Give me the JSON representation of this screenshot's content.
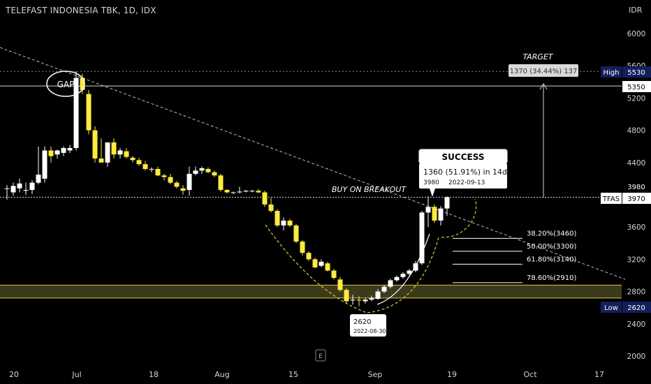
{
  "header": {
    "title": "TELEFAST INDONESIA TBK, 1D, IDX",
    "currency": "IDR"
  },
  "colors": {
    "background": "#000000",
    "up_candle": "#ffffff",
    "down_candle": "#ffeb3b",
    "axis_text": "#d1d4dc",
    "badge": "#131f5c"
  },
  "chart_data": {
    "type": "candlestick",
    "y_axis": {
      "ticks": [
        "6000",
        "5600",
        "5200",
        "4800",
        "4400",
        "3600",
        "3200",
        "2800",
        "2400",
        "2000"
      ],
      "ylim": [
        1900,
        6300
      ]
    },
    "x_axis": {
      "ticks": [
        "20",
        "Jul",
        "18",
        "Aug",
        "15",
        "Sep",
        "19",
        "Oct",
        "17"
      ]
    },
    "price_labels": {
      "high_label": "High",
      "high_value": "5530",
      "line_value": "5350",
      "breakout_value": "3980",
      "symbol_label": "TFAS",
      "symbol_value": "3970",
      "low_label": "Low",
      "low_value": "2620"
    },
    "candles": [
      {
        "o": 4080,
        "h": 4120,
        "l": 3940,
        "c": 4080
      },
      {
        "o": 4030,
        "h": 4150,
        "l": 3990,
        "c": 4110
      },
      {
        "o": 4080,
        "h": 4200,
        "l": 4030,
        "c": 4140
      },
      {
        "o": 4050,
        "h": 4150,
        "l": 4000,
        "c": 4060
      },
      {
        "o": 4060,
        "h": 4180,
        "l": 4010,
        "c": 4150
      },
      {
        "o": 4150,
        "h": 4600,
        "l": 4130,
        "c": 4250
      },
      {
        "o": 4200,
        "h": 4600,
        "l": 4150,
        "c": 4550
      },
      {
        "o": 4550,
        "h": 4600,
        "l": 4400,
        "c": 4480
      },
      {
        "o": 4500,
        "h": 4560,
        "l": 4450,
        "c": 4550
      },
      {
        "o": 4520,
        "h": 4600,
        "l": 4480,
        "c": 4580
      },
      {
        "o": 4550,
        "h": 4620,
        "l": 4520,
        "c": 4580
      },
      {
        "o": 4580,
        "h": 5530,
        "l": 4550,
        "c": 5450
      },
      {
        "o": 5450,
        "h": 5500,
        "l": 5250,
        "c": 5300
      },
      {
        "o": 5250,
        "h": 5300,
        "l": 4750,
        "c": 4800
      },
      {
        "o": 4800,
        "h": 4850,
        "l": 4400,
        "c": 4450
      },
      {
        "o": 4450,
        "h": 4700,
        "l": 4400,
        "c": 4400
      },
      {
        "o": 4400,
        "h": 4650,
        "l": 4350,
        "c": 4650
      },
      {
        "o": 4650,
        "h": 4700,
        "l": 4450,
        "c": 4500
      },
      {
        "o": 4500,
        "h": 4580,
        "l": 4450,
        "c": 4550
      },
      {
        "o": 4540,
        "h": 4580,
        "l": 4450,
        "c": 4470
      },
      {
        "o": 4460,
        "h": 4480,
        "l": 4400,
        "c": 4430
      },
      {
        "o": 4430,
        "h": 4460,
        "l": 4360,
        "c": 4380
      },
      {
        "o": 4380,
        "h": 4420,
        "l": 4300,
        "c": 4320
      },
      {
        "o": 4320,
        "h": 4340,
        "l": 4280,
        "c": 4320
      },
      {
        "o": 4320,
        "h": 4350,
        "l": 4230,
        "c": 4240
      },
      {
        "o": 4240,
        "h": 4260,
        "l": 4180,
        "c": 4220
      },
      {
        "o": 4220,
        "h": 4260,
        "l": 4130,
        "c": 4150
      },
      {
        "o": 4150,
        "h": 4170,
        "l": 4080,
        "c": 4100
      },
      {
        "o": 4080,
        "h": 4120,
        "l": 4000,
        "c": 4050
      },
      {
        "o": 4060,
        "h": 4350,
        "l": 3990,
        "c": 4260
      },
      {
        "o": 4260,
        "h": 4350,
        "l": 4240,
        "c": 4300
      },
      {
        "o": 4300,
        "h": 4350,
        "l": 4260,
        "c": 4330
      },
      {
        "o": 4320,
        "h": 4340,
        "l": 4270,
        "c": 4280
      },
      {
        "o": 4280,
        "h": 4300,
        "l": 4220,
        "c": 4240
      },
      {
        "o": 4240,
        "h": 4260,
        "l": 4040,
        "c": 4060
      },
      {
        "o": 4060,
        "h": 4070,
        "l": 4020,
        "c": 4030
      },
      {
        "o": 4030,
        "h": 4040,
        "l": 4010,
        "c": 4030
      },
      {
        "o": 4030,
        "h": 4100,
        "l": 4020,
        "c": 4040
      },
      {
        "o": 4040,
        "h": 4060,
        "l": 4030,
        "c": 4050
      },
      {
        "o": 4050,
        "h": 4060,
        "l": 4030,
        "c": 4050
      },
      {
        "o": 4050,
        "h": 4070,
        "l": 4020,
        "c": 4030
      },
      {
        "o": 4030,
        "h": 4050,
        "l": 3850,
        "c": 3880
      },
      {
        "o": 3880,
        "h": 3960,
        "l": 3780,
        "c": 3800
      },
      {
        "o": 3800,
        "h": 3820,
        "l": 3600,
        "c": 3620
      },
      {
        "o": 3620,
        "h": 3720,
        "l": 3560,
        "c": 3680
      },
      {
        "o": 3680,
        "h": 3700,
        "l": 3600,
        "c": 3620
      },
      {
        "o": 3620,
        "h": 3640,
        "l": 3400,
        "c": 3420
      },
      {
        "o": 3420,
        "h": 3440,
        "l": 3250,
        "c": 3280
      },
      {
        "o": 3280,
        "h": 3300,
        "l": 3180,
        "c": 3200
      },
      {
        "o": 3200,
        "h": 3220,
        "l": 3090,
        "c": 3100
      },
      {
        "o": 3120,
        "h": 3200,
        "l": 3100,
        "c": 3170
      },
      {
        "o": 3150,
        "h": 3170,
        "l": 3050,
        "c": 3060
      },
      {
        "o": 3060,
        "h": 3080,
        "l": 2950,
        "c": 2970
      },
      {
        "o": 2950,
        "h": 2980,
        "l": 2800,
        "c": 2820
      },
      {
        "o": 2820,
        "h": 2840,
        "l": 2660,
        "c": 2680
      },
      {
        "o": 2690,
        "h": 2760,
        "l": 2640,
        "c": 2700
      },
      {
        "o": 2700,
        "h": 2740,
        "l": 2620,
        "c": 2690
      },
      {
        "o": 2680,
        "h": 2720,
        "l": 2650,
        "c": 2700
      },
      {
        "o": 2700,
        "h": 2750,
        "l": 2680,
        "c": 2720
      },
      {
        "o": 2710,
        "h": 2830,
        "l": 2700,
        "c": 2800
      },
      {
        "o": 2800,
        "h": 2880,
        "l": 2780,
        "c": 2860
      },
      {
        "o": 2860,
        "h": 2960,
        "l": 2840,
        "c": 2940
      },
      {
        "o": 2940,
        "h": 3000,
        "l": 2920,
        "c": 2980
      },
      {
        "o": 2980,
        "h": 3040,
        "l": 2960,
        "c": 3020
      },
      {
        "o": 3020,
        "h": 3080,
        "l": 3000,
        "c": 3060
      },
      {
        "o": 3060,
        "h": 3180,
        "l": 3040,
        "c": 3150
      },
      {
        "o": 3150,
        "h": 3800,
        "l": 3130,
        "c": 3780
      },
      {
        "o": 3780,
        "h": 3980,
        "l": 3600,
        "c": 3850
      },
      {
        "o": 3850,
        "h": 3880,
        "l": 3650,
        "c": 3680
      },
      {
        "o": 3680,
        "h": 3860,
        "l": 3620,
        "c": 3830
      },
      {
        "o": 3830,
        "h": 3980,
        "l": 3740,
        "c": 3970
      }
    ],
    "lines": {
      "high_line": 5350,
      "breakout_line": 3970,
      "support_band": [
        2720,
        2880
      ]
    },
    "fib_levels": [
      "38.20%(3460)",
      "50.00%(3300)",
      "61.80%(3140)",
      "78.60%(2910)"
    ],
    "fib_values": [
      3460,
      3300,
      3140,
      2910
    ],
    "annotations": {
      "gap": "GAP",
      "target_title": "TARGET",
      "target_text": "1370 (34.44%) 137",
      "buy_text": "BUY ON BREAKOUT",
      "success_title": "SUCCESS",
      "success_line": "1360 (51.91%) in 14d",
      "success_price": "3980",
      "success_date": "2022-09-13",
      "low_price": "2620",
      "low_date": "2022-08-30",
      "e_button": "E"
    }
  }
}
